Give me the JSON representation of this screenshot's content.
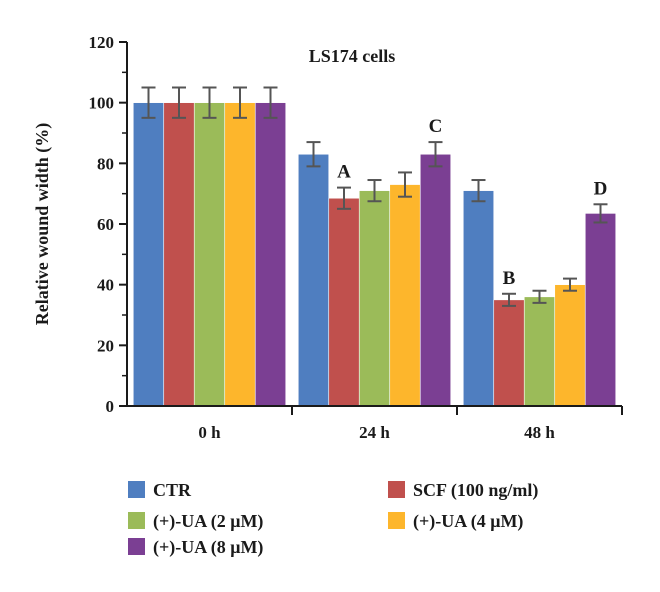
{
  "chart_data": {
    "type": "bar",
    "title": "LS174 cells",
    "xlabel": "",
    "ylabel": "Relative wound width (%)",
    "ylim": [
      0,
      120
    ],
    "yticks": [
      0,
      20,
      40,
      60,
      80,
      100,
      120
    ],
    "categories": [
      "0 h",
      "24 h",
      "48 h"
    ],
    "series": [
      {
        "name": "CTR",
        "color": "#4f7ec0",
        "values": [
          100,
          83,
          71
        ],
        "errors": [
          5,
          4,
          3.5
        ]
      },
      {
        "name": "SCF (100 ng/ml)",
        "color": "#c0504d",
        "values": [
          100,
          68.5,
          35
        ],
        "errors": [
          5,
          3.5,
          2
        ]
      },
      {
        "name": "(+)-UA (2 μM)",
        "color": "#9bbb59",
        "values": [
          100,
          71,
          36
        ],
        "errors": [
          5,
          3.5,
          2
        ]
      },
      {
        "name": "(+)-UA (4 μM)",
        "color": "#fdb62c",
        "values": [
          100,
          73,
          40
        ],
        "errors": [
          5,
          4,
          2
        ]
      },
      {
        "name": "(+)-UA (8 μM)",
        "color": "#7b3f93",
        "values": [
          100,
          83,
          63.5
        ],
        "errors": [
          5,
          4,
          3
        ]
      }
    ],
    "annotations": [
      {
        "text": "A",
        "category": "24 h",
        "series": "SCF (100 ng/ml)"
      },
      {
        "text": "C",
        "category": "24 h",
        "series": "(+)-UA (8 μM)"
      },
      {
        "text": "B",
        "category": "48 h",
        "series": "SCF (100 ng/ml)"
      },
      {
        "text": "D",
        "category": "48 h",
        "series": "(+)-UA (8 μM)"
      }
    ],
    "grid": false,
    "legend_position": "bottom"
  }
}
